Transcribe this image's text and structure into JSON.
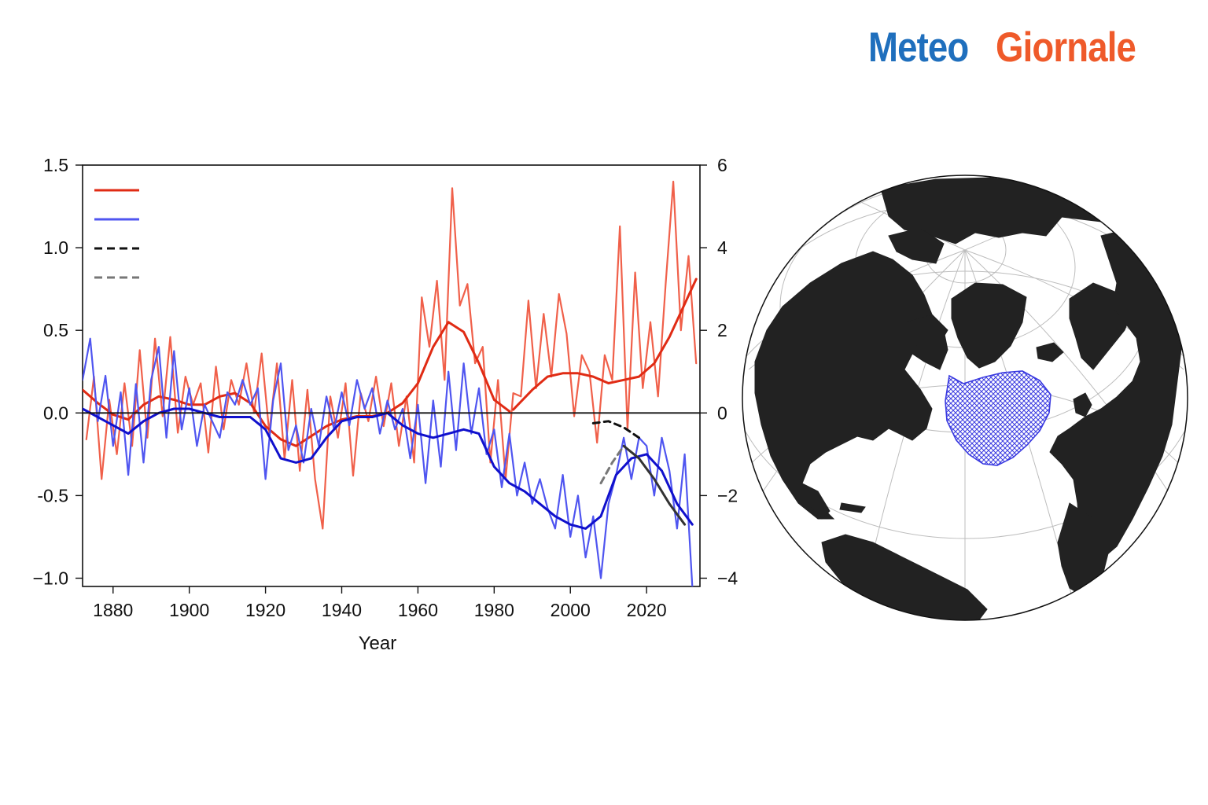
{
  "brand": {
    "word1": "Meteo",
    "word2": "Giornale",
    "color1": "#1f6fbd",
    "color2": "#ef5a2a"
  },
  "chart_data": {
    "type": "line",
    "title": "",
    "xlabel": "Year",
    "ylabel_left": "",
    "ylabel_right": "",
    "xlim": [
      1872,
      2034
    ],
    "ylim_left": [
      -1.05,
      1.5
    ],
    "ylim_right": [
      -4.2,
      6
    ],
    "x_ticks": [
      1880,
      1900,
      1920,
      1940,
      1960,
      1980,
      2000,
      2020
    ],
    "y_ticks_left": [
      -1.0,
      -0.5,
      0.0,
      0.5,
      1.0,
      1.5
    ],
    "y_tick_labels_left": [
      "−1.0",
      "-0.5",
      "0.0",
      "0.5",
      "1.0",
      "1.5"
    ],
    "y_ticks_right": [
      -4,
      -2,
      0,
      2,
      4,
      6
    ],
    "y_tick_labels_right": [
      "−4",
      "−2",
      "0",
      "2",
      "4",
      "6"
    ],
    "zero_line": true,
    "grid": false,
    "legend_placement": "top-left",
    "series": [
      {
        "kind": "annual",
        "color": "#f0604a",
        "axis": "left",
        "x": [
          1873,
          1875,
          1877,
          1879,
          1881,
          1883,
          1885,
          1887,
          1889,
          1891,
          1893,
          1895,
          1897,
          1899,
          1901,
          1903,
          1905,
          1907,
          1909,
          1911,
          1913,
          1915,
          1917,
          1919,
          1921,
          1923,
          1925,
          1927,
          1929,
          1931,
          1933,
          1935,
          1937,
          1939,
          1941,
          1943,
          1945,
          1947,
          1949,
          1951,
          1953,
          1955,
          1957,
          1959,
          1961,
          1963,
          1965,
          1967,
          1969,
          1971,
          1973,
          1975,
          1977,
          1979,
          1981,
          1983,
          1985,
          1987,
          1989,
          1991,
          1993,
          1995,
          1997,
          1999,
          2001,
          2003,
          2005,
          2007,
          2009,
          2011,
          2013,
          2015,
          2017,
          2019,
          2021,
          2023,
          2025,
          2027,
          2029,
          2031,
          2033
        ],
        "y": [
          -0.16,
          0.22,
          -0.4,
          0.08,
          -0.25,
          0.18,
          -0.2,
          0.38,
          -0.15,
          0.45,
          -0.02,
          0.46,
          -0.12,
          0.22,
          0.05,
          0.18,
          -0.24,
          0.28,
          -0.1,
          0.2,
          0.05,
          0.3,
          0.0,
          0.36,
          -0.12,
          0.3,
          -0.28,
          0.2,
          -0.35,
          0.14,
          -0.4,
          -0.7,
          0.1,
          -0.15,
          0.18,
          -0.38,
          0.12,
          -0.05,
          0.22,
          -0.08,
          0.18,
          -0.2,
          0.1,
          -0.3,
          0.7,
          0.4,
          0.8,
          0.2,
          1.36,
          0.65,
          0.78,
          0.3,
          0.4,
          -0.3,
          0.2,
          -0.4,
          0.12,
          0.1,
          0.68,
          0.15,
          0.6,
          0.22,
          0.72,
          0.48,
          -0.02,
          0.35,
          0.25,
          -0.18,
          0.35,
          0.2,
          1.13,
          -0.1,
          0.85,
          0.15,
          0.55,
          0.1,
          0.78,
          1.4,
          0.5,
          0.95,
          0.3
        ]
      },
      {
        "kind": "smoothed",
        "color": "#e02b14",
        "axis": "left",
        "x": [
          1872,
          1876,
          1880,
          1884,
          1888,
          1892,
          1896,
          1900,
          1904,
          1908,
          1912,
          1916,
          1920,
          1924,
          1928,
          1932,
          1936,
          1940,
          1944,
          1948,
          1952,
          1956,
          1960,
          1964,
          1968,
          1972,
          1976,
          1980,
          1984
        ],
        "y": [
          0.14,
          0.06,
          -0.01,
          -0.04,
          0.05,
          0.1,
          0.08,
          0.05,
          0.05,
          0.1,
          0.12,
          0.06,
          -0.08,
          -0.16,
          -0.2,
          -0.14,
          -0.08,
          -0.04,
          -0.02,
          -0.02,
          0.0,
          0.06,
          0.18,
          0.4,
          0.55,
          0.49,
          0.3,
          0.08,
          0.01
        ]
      },
      {
        "kind": "smoothed",
        "color": "#e02b14",
        "axis": "left",
        "x": [
          1985,
          1990,
          1994,
          1998,
          2002,
          2006,
          2010,
          2014,
          2018,
          2022,
          2026,
          2030,
          2033
        ],
        "y": [
          0.02,
          0.14,
          0.22,
          0.24,
          0.24,
          0.22,
          0.18,
          0.2,
          0.22,
          0.3,
          0.46,
          0.66,
          0.81
        ]
      },
      {
        "kind": "annual",
        "color": "#4f55f0",
        "axis": "right",
        "x": [
          1872,
          1874,
          1876,
          1878,
          1880,
          1882,
          1884,
          1886,
          1888,
          1890,
          1892,
          1894,
          1896,
          1898,
          1900,
          1902,
          1904,
          1906,
          1908,
          1910,
          1912,
          1914,
          1916,
          1918,
          1920,
          1922,
          1924,
          1926,
          1928,
          1930,
          1932,
          1934,
          1936,
          1938,
          1940,
          1942,
          1944,
          1946,
          1948,
          1950,
          1952,
          1954,
          1956,
          1958,
          1960,
          1962,
          1964,
          1966,
          1968,
          1970,
          1972,
          1974,
          1976,
          1978,
          1980,
          1982,
          1984,
          1986,
          1988,
          1990,
          1992,
          1994,
          1996,
          1998,
          2000,
          2002,
          2004,
          2006,
          2008,
          2010,
          2012,
          2014,
          2016,
          2018,
          2020,
          2022,
          2024,
          2026,
          2028,
          2030,
          2032
        ],
        "y": [
          0.8,
          1.8,
          -0.2,
          0.9,
          -0.8,
          0.5,
          -1.5,
          0.7,
          -1.2,
          0.8,
          1.6,
          -0.6,
          1.5,
          -0.4,
          0.6,
          -0.8,
          0.2,
          -0.2,
          -0.6,
          0.5,
          0.2,
          0.8,
          0.2,
          0.6,
          -1.6,
          0.3,
          1.2,
          -0.9,
          -0.3,
          -1.2,
          0.1,
          -0.8,
          0.4,
          -0.4,
          0.5,
          -0.3,
          0.8,
          0.1,
          0.6,
          -0.5,
          0.3,
          -0.4,
          0.1,
          -1.1,
          0.2,
          -1.7,
          0.3,
          -1.3,
          1.0,
          -0.9,
          1.2,
          -0.5,
          0.6,
          -1.0,
          -0.4,
          -1.8,
          -0.5,
          -2.0,
          -1.2,
          -2.2,
          -1.6,
          -2.3,
          -2.8,
          -1.5,
          -3.0,
          -2.0,
          -3.5,
          -2.5,
          -4.0,
          -2.2,
          -1.5,
          -0.6,
          -1.6,
          -0.6,
          -0.8,
          -2.0,
          -0.6,
          -1.4,
          -2.8,
          -1.0,
          -4.2
        ]
      },
      {
        "kind": "smoothed",
        "color": "#1010cc",
        "axis": "right",
        "x": [
          1872,
          1876,
          1880,
          1884,
          1888,
          1892,
          1896,
          1900,
          1904,
          1908,
          1912,
          1916,
          1920,
          1924,
          1928,
          1932,
          1936,
          1940,
          1944,
          1948,
          1952,
          1956,
          1960,
          1964,
          1968,
          1972,
          1976,
          1980,
          1984,
          1988,
          1992,
          1996,
          2000,
          2004,
          2008,
          2012,
          2016,
          2020,
          2024,
          2028,
          2032
        ],
        "y": [
          0.1,
          -0.1,
          -0.3,
          -0.5,
          -0.2,
          0.0,
          0.1,
          0.1,
          0.0,
          -0.1,
          -0.1,
          -0.1,
          -0.4,
          -1.1,
          -1.2,
          -1.1,
          -0.6,
          -0.2,
          -0.1,
          -0.1,
          0.0,
          -0.3,
          -0.5,
          -0.6,
          -0.5,
          -0.4,
          -0.5,
          -1.3,
          -1.7,
          -1.9,
          -2.2,
          -2.5,
          -2.7,
          -2.8,
          -2.5,
          -1.5,
          -1.1,
          -1.0,
          -1.4,
          -2.2,
          -2.7
        ]
      },
      {
        "kind": "forecast",
        "color": "#333333",
        "axis": "right",
        "x": [
          2014,
          2018,
          2022,
          2026,
          2030
        ],
        "y": [
          -0.8,
          -1.1,
          -1.6,
          -2.2,
          -2.7
        ]
      },
      {
        "kind": "forecast-dashed",
        "color": "#111111",
        "axis": "right",
        "dash": "8,6",
        "x": [
          2006,
          2010,
          2014,
          2018
        ],
        "y": [
          -0.25,
          -0.2,
          -0.35,
          -0.6
        ]
      },
      {
        "kind": "forecast-dashed",
        "color": "#777777",
        "axis": "right",
        "dash": "8,6",
        "x": [
          2008,
          2011,
          2014
        ],
        "y": [
          -1.7,
          -1.2,
          -0.8
        ]
      }
    ],
    "legend": [
      {
        "color": "#e02b14",
        "style": "solid"
      },
      {
        "color": "#4f55f0",
        "style": "solid"
      },
      {
        "color": "#111111",
        "style": "dashed"
      },
      {
        "color": "#777777",
        "style": "dashed"
      }
    ]
  },
  "map": {
    "projection": "orthographic",
    "land_color": "#222222",
    "ocean_color": "#ffffff",
    "region_color": "#3a3ae0",
    "region_pattern": "crosshatch"
  }
}
